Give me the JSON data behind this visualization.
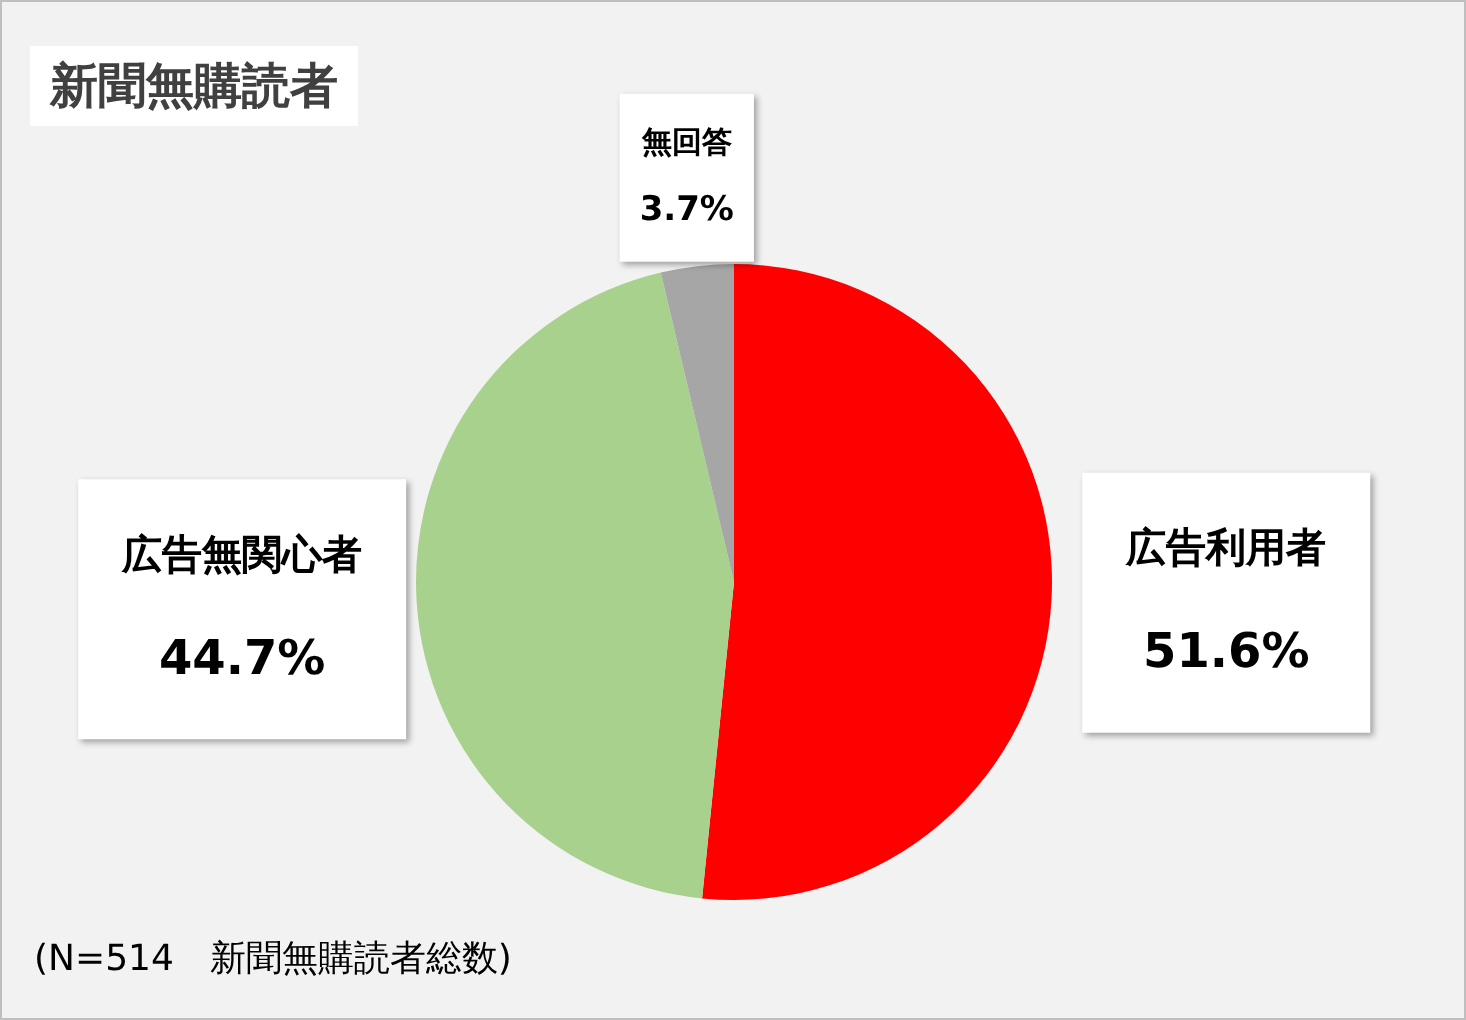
{
  "chart_data": {
    "type": "pie",
    "title": "新聞無購読者",
    "categories": [
      "広告利用者",
      "広告無関心者",
      "無回答"
    ],
    "values": [
      51.6,
      44.7,
      3.7
    ],
    "value_labels": [
      "51.6%",
      "44.7%",
      "3.7%"
    ],
    "colors": [
      "#ff0000",
      "#a9d18e",
      "#a6a6a6"
    ],
    "legend": false,
    "annotations": [
      "(N=514　新聞無購読者総数)"
    ]
  }
}
